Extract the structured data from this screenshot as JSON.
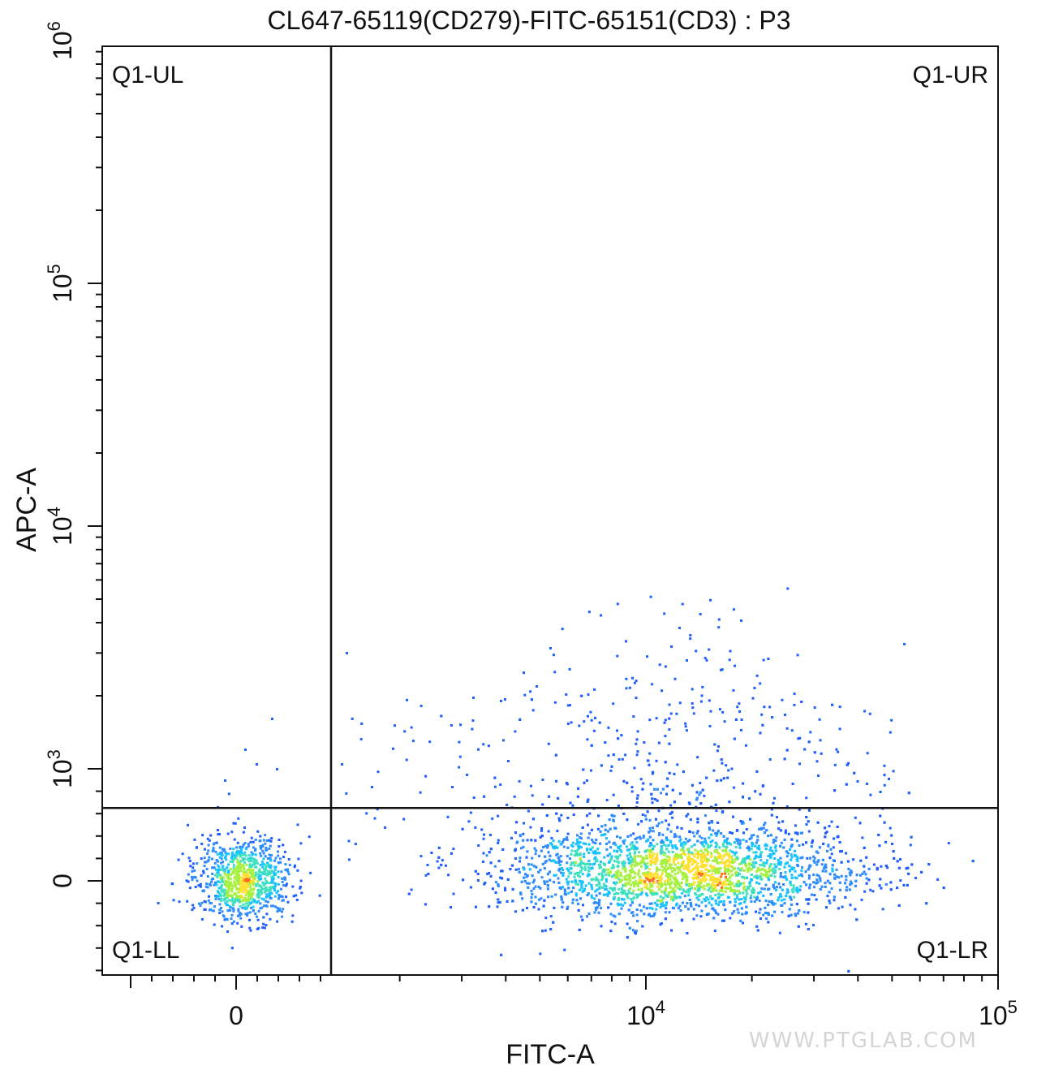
{
  "chart_data": {
    "type": "scatter",
    "title": "CL647-65119(CD279)-FITC-65151(CD3) : P3",
    "xlabel": "FITC-A",
    "ylabel": "APC-A",
    "x_scale": "biexponential",
    "y_scale": "biexponential",
    "x_ticks": [
      {
        "value": 0,
        "base": "0",
        "exp": ""
      },
      {
        "value": 10000,
        "base": "10",
        "exp": "4"
      },
      {
        "value": 100000,
        "base": "10",
        "exp": "5"
      }
    ],
    "y_ticks": [
      {
        "value": 0,
        "base": "0",
        "exp": ""
      },
      {
        "value": 1000,
        "base": "10",
        "exp": "3"
      },
      {
        "value": 10000,
        "base": "10",
        "exp": "4"
      },
      {
        "value": 100000,
        "base": "10",
        "exp": "5"
      },
      {
        "value": 1000000,
        "base": "10",
        "exp": "6"
      }
    ],
    "gate": {
      "x": 1800,
      "y": 650
    },
    "quadrants": {
      "ul": "Q1-UL",
      "ur": "Q1-UR",
      "ll": "Q1-LL",
      "lr": "Q1-LR"
    },
    "populations": [
      {
        "name_hint": "negative cluster",
        "center_x": 0,
        "center_y": 0,
        "count": 900
      },
      {
        "name_hint": "CD3+ cluster",
        "center_x": 11000,
        "center_y": 0,
        "count": 4200
      }
    ],
    "density_colors": [
      "#1f5fff",
      "#2f8cff",
      "#19c3ff",
      "#3fe0c0",
      "#a8f040",
      "#ffe030",
      "#ff7020"
    ],
    "grid": false,
    "legend": "none"
  },
  "watermark": "WWW.PTGLAB.COM"
}
